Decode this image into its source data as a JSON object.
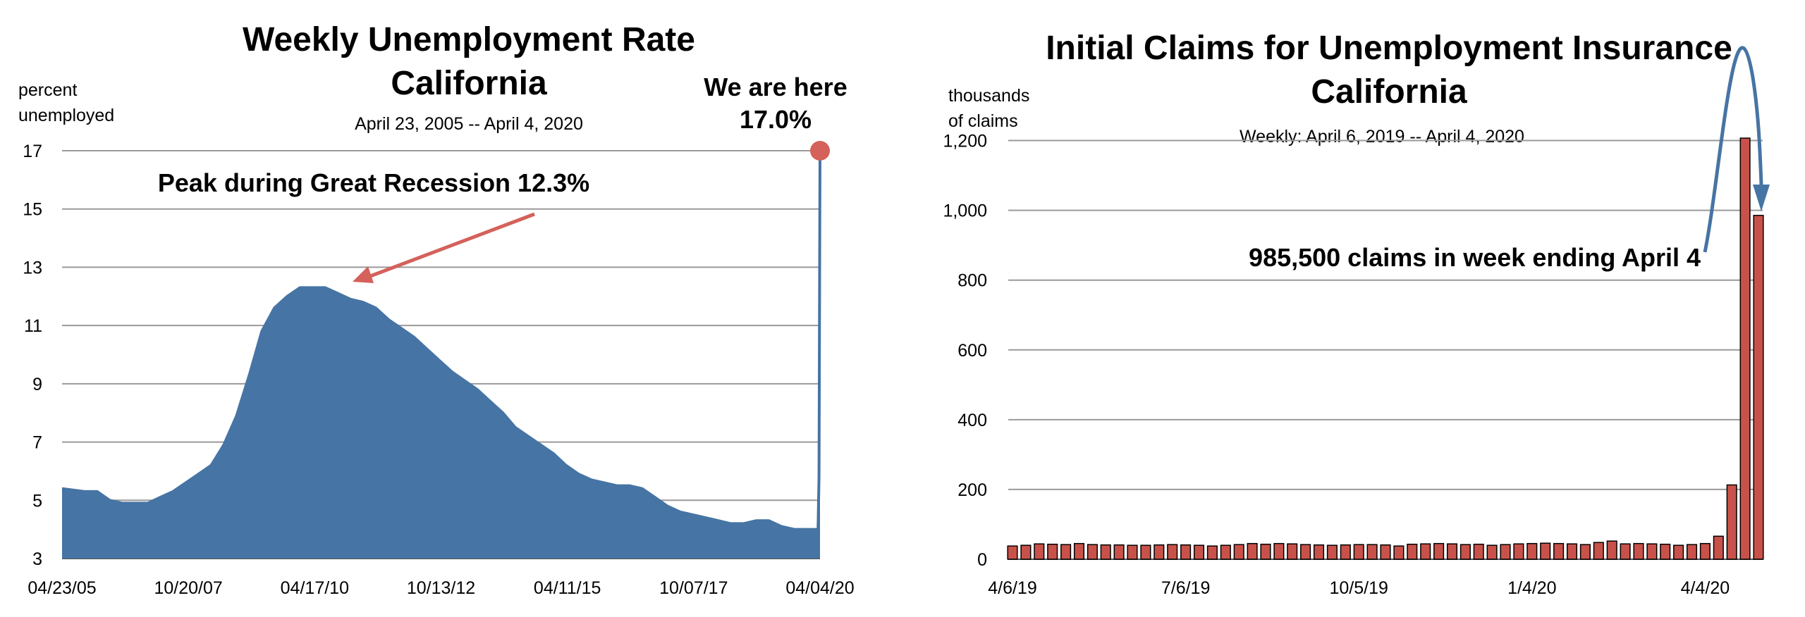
{
  "chart_data": [
    {
      "type": "area",
      "title": "Weekly Unemployment Rate",
      "title_line2": "California",
      "subtitle": "April 23, 2005 -- April 4, 2020",
      "ylabel_line1": "percent",
      "ylabel_line2": "unemployed",
      "ylim": [
        3,
        17
      ],
      "yticks": [
        "17",
        "15",
        "13",
        "11",
        "9",
        "7",
        "5",
        "3"
      ],
      "xticks": [
        "04/23/05",
        "10/20/07",
        "04/17/10",
        "10/13/12",
        "04/11/15",
        "10/07/17",
        "04/04/20"
      ],
      "grid": true,
      "color": "#4674a4",
      "x": [
        "2005-04-23",
        "2005-10-01",
        "2006-01-01",
        "2006-04-01",
        "2006-07-01",
        "2006-10-01",
        "2007-01-01",
        "2007-04-01",
        "2007-07-01",
        "2007-10-01",
        "2008-01-01",
        "2008-04-01",
        "2008-07-01",
        "2008-10-01",
        "2009-01-01",
        "2009-04-01",
        "2009-07-01",
        "2009-10-01",
        "2010-01-01",
        "2010-04-01",
        "2010-07-01",
        "2010-10-01",
        "2011-01-01",
        "2011-04-01",
        "2011-07-01",
        "2011-10-01",
        "2012-01-01",
        "2012-04-01",
        "2012-07-01",
        "2012-10-01",
        "2013-01-01",
        "2013-04-01",
        "2013-07-01",
        "2013-10-01",
        "2014-01-01",
        "2014-04-01",
        "2014-07-01",
        "2014-10-01",
        "2015-01-01",
        "2015-04-01",
        "2015-07-01",
        "2015-10-01",
        "2016-01-01",
        "2016-04-01",
        "2016-07-01",
        "2016-10-01",
        "2017-01-01",
        "2017-04-01",
        "2017-07-01",
        "2017-10-01",
        "2018-01-01",
        "2018-04-01",
        "2018-07-01",
        "2018-10-01",
        "2019-01-01",
        "2019-04-01",
        "2019-07-01",
        "2019-10-01",
        "2020-01-01",
        "2020-03-14",
        "2020-03-21",
        "2020-03-28",
        "2020-04-04"
      ],
      "values": [
        5.4,
        5.3,
        5.3,
        5.0,
        4.9,
        4.9,
        4.9,
        5.1,
        5.3,
        5.6,
        5.9,
        6.2,
        6.9,
        7.9,
        9.3,
        10.8,
        11.6,
        12.0,
        12.3,
        12.3,
        12.3,
        12.1,
        11.9,
        11.8,
        11.6,
        11.2,
        10.9,
        10.6,
        10.2,
        9.8,
        9.4,
        9.1,
        8.8,
        8.4,
        8.0,
        7.5,
        7.2,
        6.9,
        6.6,
        6.2,
        5.9,
        5.7,
        5.6,
        5.5,
        5.5,
        5.4,
        5.1,
        4.8,
        4.6,
        4.5,
        4.4,
        4.3,
        4.2,
        4.2,
        4.3,
        4.3,
        4.1,
        4.0,
        4.0,
        4.0,
        4.0,
        5.8,
        17.0
      ]
    },
    {
      "type": "bar",
      "title": "Initial Claims for Unemployment Insurance",
      "title_line2": "California",
      "subtitle": "Weekly: April 6, 2019 -- April 4, 2020",
      "ylabel_line1": "thousands",
      "ylabel_line2": "of claims",
      "ylim": [
        0,
        1300
      ],
      "yticks": [
        "1,200",
        "1,000",
        "800",
        "600",
        "400",
        "200",
        "0"
      ],
      "xticks": [
        "4/6/19",
        "7/6/19",
        "10/5/19",
        "1/4/20",
        "4/4/20"
      ],
      "grid": true,
      "color": "#c8524a",
      "values": [
        38,
        40,
        44,
        43,
        42,
        45,
        42,
        41,
        41,
        40,
        40,
        41,
        42,
        41,
        40,
        38,
        40,
        42,
        45,
        43,
        45,
        44,
        42,
        41,
        40,
        41,
        42,
        42,
        41,
        38,
        43,
        44,
        45,
        44,
        42,
        43,
        40,
        42,
        44,
        45,
        46,
        45,
        44,
        42,
        48,
        52,
        44,
        45,
        44,
        43,
        40,
        42,
        45,
        66,
        213,
        1207,
        985.5
      ]
    }
  ],
  "annotations": {
    "left_here_line1": "We are here",
    "left_here_line2": "17.0%",
    "left_peak": "Peak during  Great Recession 12.3%",
    "right_claims": "985,500 claims in week ending April 4"
  }
}
